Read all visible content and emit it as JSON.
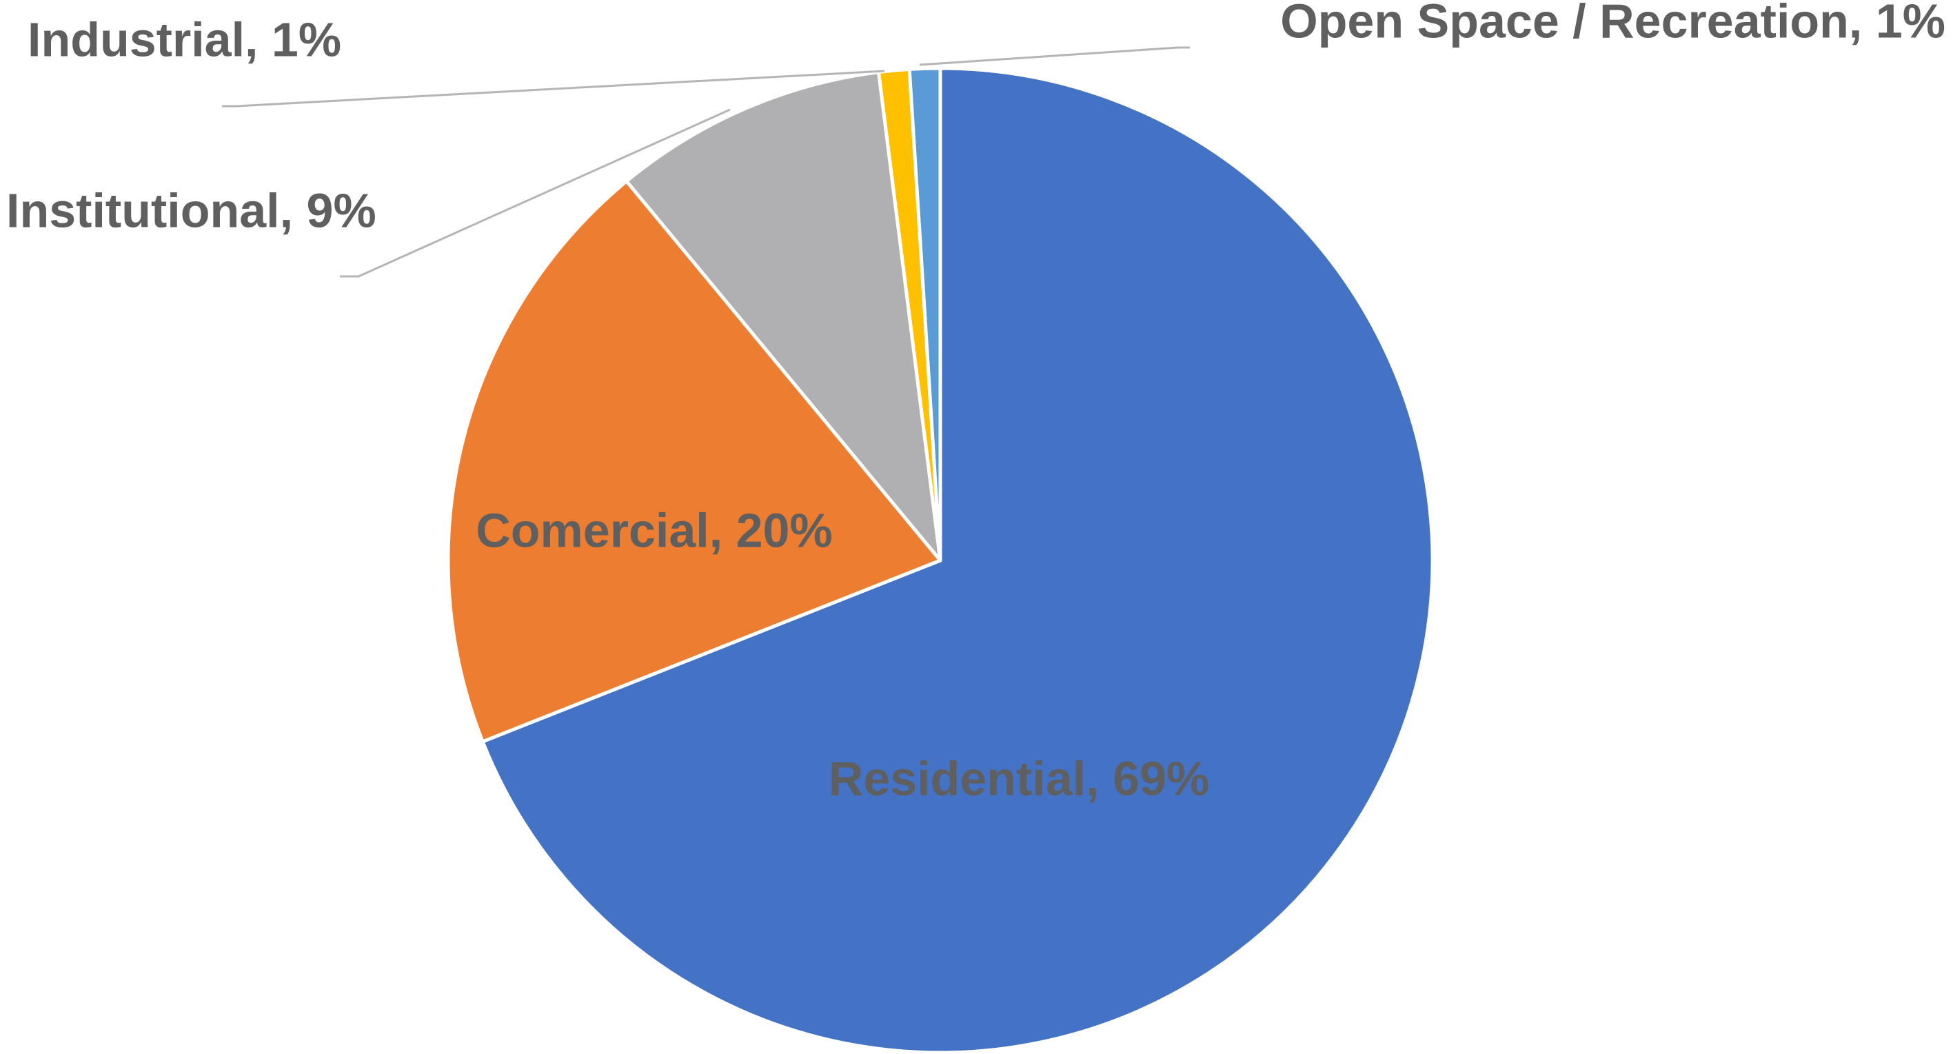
{
  "chart_data": {
    "type": "pie",
    "categories": [
      "Residential",
      "Comercial",
      "Institutional",
      "Industrial",
      "Open Space / Recreation"
    ],
    "values": [
      69,
      20,
      9,
      1,
      1
    ],
    "value_labels": [
      "Residential, 69%",
      "Comercial, 20%",
      "Institutional, 9%",
      "Industrial, 1%",
      "Open Space / Recreation, 1%"
    ],
    "colors": [
      "#4472c4",
      "#ed7d31",
      "#b0b0b3",
      "#ffc000",
      "#5b9bd5"
    ]
  }
}
